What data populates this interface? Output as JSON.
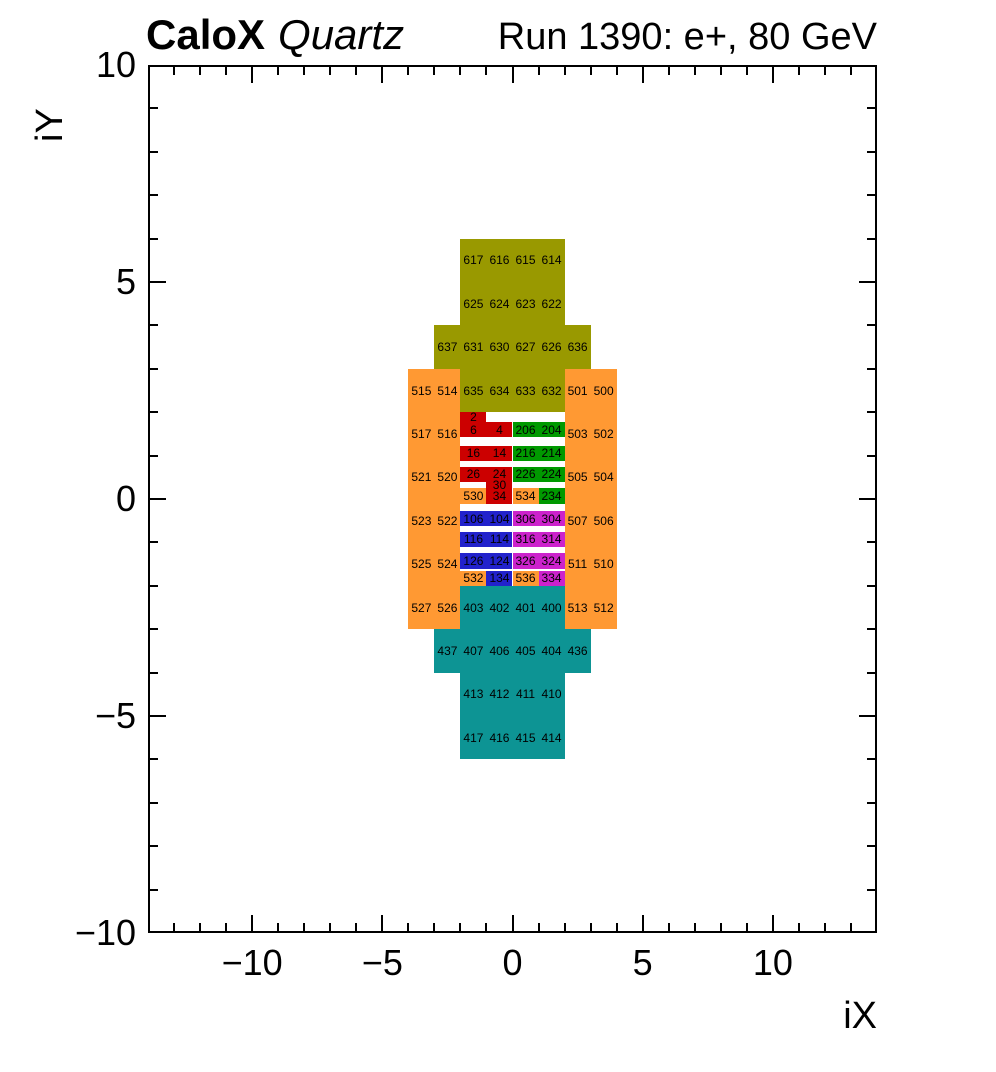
{
  "header": {
    "experiment": "CaloX",
    "subtitle": "Quartz",
    "run_title": "Run 1390: e+, 80 GeV"
  },
  "axes": {
    "x": {
      "title": "iX",
      "min": -14,
      "max": 14,
      "ticks": [
        {
          "u": -10,
          "label": "−10"
        },
        {
          "u": -5,
          "label": "−5"
        },
        {
          "u": 0,
          "label": "0"
        },
        {
          "u": 5,
          "label": "5"
        },
        {
          "u": 10,
          "label": "10"
        }
      ]
    },
    "y": {
      "title": "iY",
      "min": -10,
      "max": 10,
      "ticks": [
        {
          "u": 10,
          "label": "10"
        },
        {
          "u": 5,
          "label": "5"
        },
        {
          "u": 0,
          "label": "0"
        },
        {
          "u": -5,
          "label": "−5"
        },
        {
          "u": -10,
          "label": "−10"
        }
      ]
    }
  },
  "palette": {
    "olive": "#999900",
    "orange": "#ff9933",
    "red": "#cc0000",
    "green": "#009900",
    "blue": "#2222cc",
    "magenta": "#cc22cc",
    "teal": "#0d9494",
    "frame": "#000000",
    "text": "#000000"
  },
  "chart_data": {
    "type": "heatmap",
    "title": "Run 1390: e+, 80 GeV",
    "xlabel": "iX",
    "ylabel": "iY",
    "xlim": [
      -14,
      14
    ],
    "ylim": [
      -10,
      10
    ],
    "grid": false,
    "blocks": [
      {
        "group": "olive",
        "x": [
          -2,
          2
        ],
        "y": [
          4,
          6
        ]
      },
      {
        "group": "olive",
        "x": [
          -3,
          3
        ],
        "y": [
          3,
          4
        ]
      },
      {
        "group": "olive",
        "x": [
          -2,
          2
        ],
        "y": [
          2,
          3
        ]
      },
      {
        "group": "orange",
        "x": [
          -4,
          -2
        ],
        "y": [
          -3,
          3
        ]
      },
      {
        "group": "orange",
        "x": [
          2,
          4
        ],
        "y": [
          -3,
          3
        ]
      },
      {
        "group": "teal",
        "x": [
          -2,
          2
        ],
        "y": [
          -3,
          -2
        ]
      },
      {
        "group": "teal",
        "x": [
          -3,
          3
        ],
        "y": [
          -4,
          -3
        ]
      },
      {
        "group": "teal",
        "x": [
          -2,
          2
        ],
        "y": [
          -6,
          -4
        ]
      }
    ],
    "block_channels": [
      {
        "id": "617",
        "x": -1.5,
        "y": 5.5
      },
      {
        "id": "616",
        "x": -0.5,
        "y": 5.5
      },
      {
        "id": "615",
        "x": 0.5,
        "y": 5.5
      },
      {
        "id": "614",
        "x": 1.5,
        "y": 5.5
      },
      {
        "id": "625",
        "x": -1.5,
        "y": 4.5
      },
      {
        "id": "624",
        "x": -0.5,
        "y": 4.5
      },
      {
        "id": "623",
        "x": 0.5,
        "y": 4.5
      },
      {
        "id": "622",
        "x": 1.5,
        "y": 4.5
      },
      {
        "id": "637",
        "x": -2.5,
        "y": 3.5
      },
      {
        "id": "631",
        "x": -1.5,
        "y": 3.5
      },
      {
        "id": "630",
        "x": -0.5,
        "y": 3.5
      },
      {
        "id": "627",
        "x": 0.5,
        "y": 3.5
      },
      {
        "id": "626",
        "x": 1.5,
        "y": 3.5
      },
      {
        "id": "636",
        "x": 2.5,
        "y": 3.5
      },
      {
        "id": "635",
        "x": -1.5,
        "y": 2.5
      },
      {
        "id": "634",
        "x": -0.5,
        "y": 2.5
      },
      {
        "id": "633",
        "x": 0.5,
        "y": 2.5
      },
      {
        "id": "632",
        "x": 1.5,
        "y": 2.5
      },
      {
        "id": "515",
        "x": -3.5,
        "y": 2.5
      },
      {
        "id": "514",
        "x": -2.5,
        "y": 2.5
      },
      {
        "id": "517",
        "x": -3.5,
        "y": 1.5
      },
      {
        "id": "516",
        "x": -2.5,
        "y": 1.5
      },
      {
        "id": "521",
        "x": -3.5,
        "y": 0.5
      },
      {
        "id": "520",
        "x": -2.5,
        "y": 0.5
      },
      {
        "id": "523",
        "x": -3.5,
        "y": -0.5
      },
      {
        "id": "522",
        "x": -2.5,
        "y": -0.5
      },
      {
        "id": "525",
        "x": -3.5,
        "y": -1.5
      },
      {
        "id": "524",
        "x": -2.5,
        "y": -1.5
      },
      {
        "id": "527",
        "x": -3.5,
        "y": -2.5
      },
      {
        "id": "526",
        "x": -2.5,
        "y": -2.5
      },
      {
        "id": "501",
        "x": 2.5,
        "y": 2.5
      },
      {
        "id": "500",
        "x": 3.5,
        "y": 2.5
      },
      {
        "id": "503",
        "x": 2.5,
        "y": 1.5
      },
      {
        "id": "502",
        "x": 3.5,
        "y": 1.5
      },
      {
        "id": "505",
        "x": 2.5,
        "y": 0.5
      },
      {
        "id": "504",
        "x": 3.5,
        "y": 0.5
      },
      {
        "id": "507",
        "x": 2.5,
        "y": -0.5
      },
      {
        "id": "506",
        "x": 3.5,
        "y": -0.5
      },
      {
        "id": "511",
        "x": 2.5,
        "y": -1.5
      },
      {
        "id": "510",
        "x": 3.5,
        "y": -1.5
      },
      {
        "id": "513",
        "x": 2.5,
        "y": -2.5
      },
      {
        "id": "512",
        "x": 3.5,
        "y": -2.5
      },
      {
        "id": "403",
        "x": -1.5,
        "y": -2.5
      },
      {
        "id": "402",
        "x": -0.5,
        "y": -2.5
      },
      {
        "id": "401",
        "x": 0.5,
        "y": -2.5
      },
      {
        "id": "400",
        "x": 1.5,
        "y": -2.5
      },
      {
        "id": "437",
        "x": -2.5,
        "y": -3.5
      },
      {
        "id": "407",
        "x": -1.5,
        "y": -3.5
      },
      {
        "id": "406",
        "x": -0.5,
        "y": -3.5
      },
      {
        "id": "405",
        "x": 0.5,
        "y": -3.5
      },
      {
        "id": "404",
        "x": 1.5,
        "y": -3.5
      },
      {
        "id": "436",
        "x": 2.5,
        "y": -3.5
      },
      {
        "id": "413",
        "x": -1.5,
        "y": -4.5
      },
      {
        "id": "412",
        "x": -0.5,
        "y": -4.5
      },
      {
        "id": "411",
        "x": 0.5,
        "y": -4.5
      },
      {
        "id": "410",
        "x": 1.5,
        "y": -4.5
      },
      {
        "id": "417",
        "x": -1.5,
        "y": -5.5
      },
      {
        "id": "416",
        "x": -0.5,
        "y": -5.5
      },
      {
        "id": "415",
        "x": 0.5,
        "y": -5.5
      },
      {
        "id": "414",
        "x": 1.5,
        "y": -5.5
      }
    ],
    "strip_height": 0.35,
    "strip_rows": [
      {
        "y": 1.6,
        "cells": [
          {
            "id": "6",
            "color": "red",
            "x": [
              -2,
              -1
            ]
          },
          {
            "id": "4",
            "color": "red",
            "x": [
              -1,
              0
            ]
          },
          {
            "id": "206",
            "color": "green",
            "x": [
              0,
              1
            ]
          },
          {
            "id": "204",
            "color": "green",
            "x": [
              1,
              2
            ]
          }
        ]
      },
      {
        "y": 1.05,
        "cells": [
          {
            "id": "16",
            "color": "red",
            "x": [
              -2,
              -1
            ]
          },
          {
            "id": "14",
            "color": "red",
            "x": [
              -1,
              0
            ]
          },
          {
            "id": "216",
            "color": "green",
            "x": [
              0,
              1
            ]
          },
          {
            "id": "214",
            "color": "green",
            "x": [
              1,
              2
            ]
          }
        ]
      },
      {
        "y": 0.57,
        "cells": [
          {
            "id": "26",
            "color": "red",
            "x": [
              -2,
              -1
            ]
          },
          {
            "id": "24",
            "color": "red",
            "x": [
              -1,
              0
            ]
          },
          {
            "id": "226",
            "color": "green",
            "x": [
              0,
              1
            ]
          },
          {
            "id": "224",
            "color": "green",
            "x": [
              1,
              2
            ]
          }
        ]
      },
      {
        "y": 0.07,
        "cells": [
          {
            "id": "530",
            "color": "orange",
            "x": [
              -2,
              -1
            ]
          },
          {
            "id": "34",
            "color": "red",
            "x": [
              -1,
              0
            ]
          },
          {
            "id": "534",
            "color": "orange",
            "x": [
              0,
              1
            ]
          },
          {
            "id": "234",
            "color": "green",
            "x": [
              1,
              2
            ]
          }
        ]
      },
      {
        "y": -0.45,
        "cells": [
          {
            "id": "106",
            "color": "blue",
            "x": [
              -2,
              -1
            ]
          },
          {
            "id": "104",
            "color": "blue",
            "x": [
              -1,
              0
            ]
          },
          {
            "id": "306",
            "color": "magenta",
            "x": [
              0,
              1
            ]
          },
          {
            "id": "304",
            "color": "magenta",
            "x": [
              1,
              2
            ]
          }
        ]
      },
      {
        "y": -0.93,
        "cells": [
          {
            "id": "116",
            "color": "blue",
            "x": [
              -2,
              -1
            ]
          },
          {
            "id": "114",
            "color": "blue",
            "x": [
              -1,
              0
            ]
          },
          {
            "id": "316",
            "color": "magenta",
            "x": [
              0,
              1
            ]
          },
          {
            "id": "314",
            "color": "magenta",
            "x": [
              1,
              2
            ]
          }
        ]
      },
      {
        "y": -1.43,
        "cells": [
          {
            "id": "126",
            "color": "blue",
            "x": [
              -2,
              -1
            ]
          },
          {
            "id": "124",
            "color": "blue",
            "x": [
              -1,
              0
            ]
          },
          {
            "id": "326",
            "color": "magenta",
            "x": [
              0,
              1
            ]
          },
          {
            "id": "324",
            "color": "magenta",
            "x": [
              1,
              2
            ]
          }
        ]
      },
      {
        "y": -1.83,
        "cells": [
          {
            "id": "532",
            "color": "orange",
            "x": [
              -2,
              -1
            ]
          },
          {
            "id": "134",
            "color": "blue",
            "x": [
              -1,
              0
            ]
          },
          {
            "id": "536",
            "color": "orange",
            "x": [
              0,
              1
            ]
          },
          {
            "id": "334",
            "color": "magenta",
            "x": [
              1,
              2
            ]
          }
        ]
      }
    ],
    "connector_cells": [
      {
        "id": "2",
        "color": "red",
        "x": [
          -2,
          -1
        ],
        "y": [
          1.775,
          2.0
        ]
      },
      {
        "id": "30",
        "color": "red",
        "x": [
          -1,
          0
        ],
        "y": [
          0.245,
          0.395
        ]
      }
    ]
  }
}
